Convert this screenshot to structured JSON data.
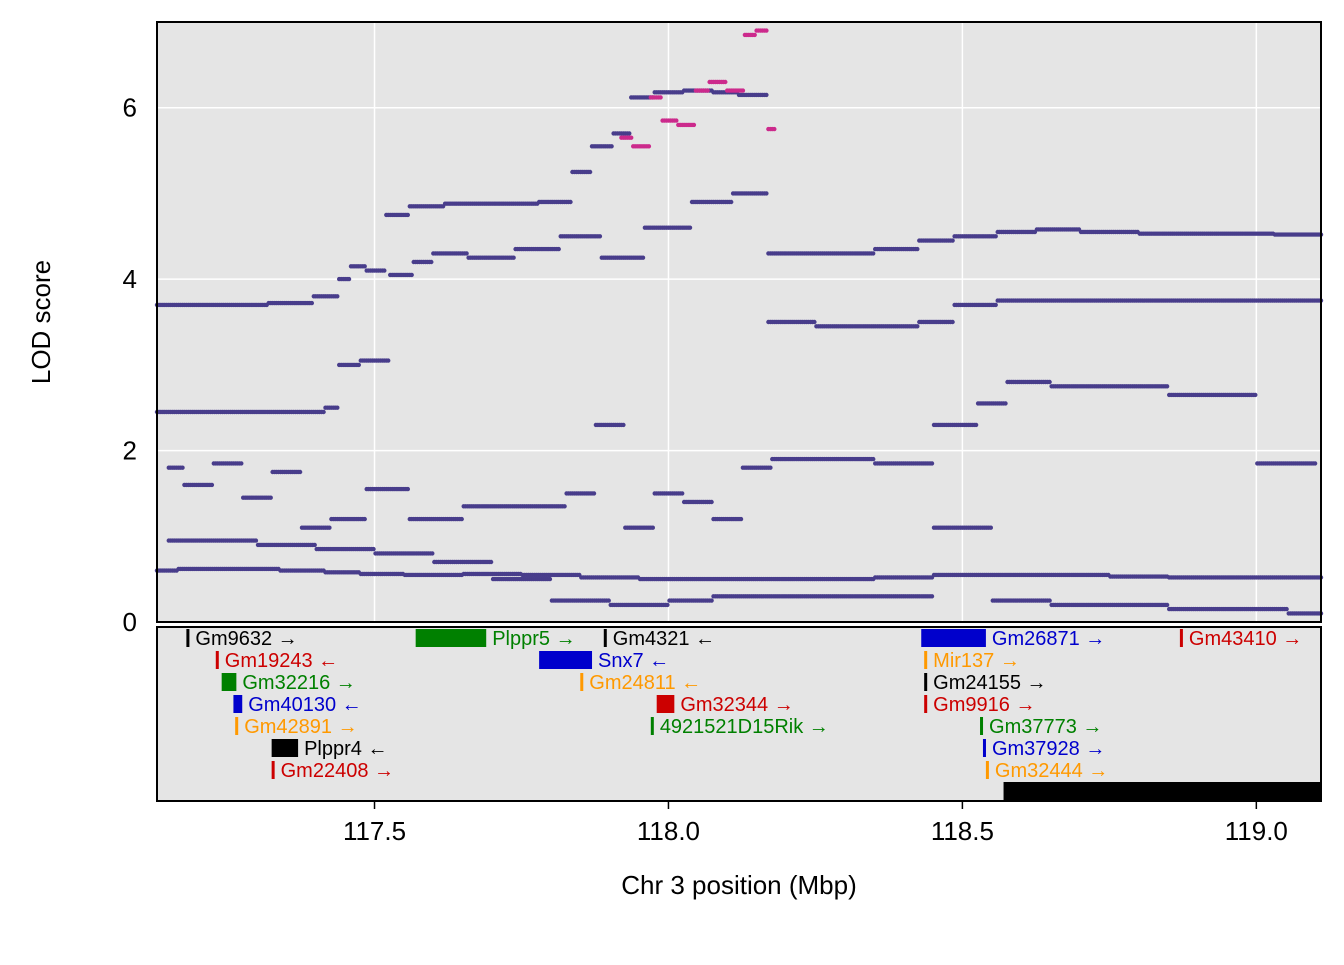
{
  "chart_data": {
    "type": "scatter",
    "title": "",
    "xlabel": "Chr 3 position (Mbp)",
    "ylabel": "LOD score",
    "xlim": [
      117.13,
      119.11
    ],
    "ylim": [
      0,
      7.0
    ],
    "x_ticks": [
      {
        "value": 117.5,
        "label": "117.5"
      },
      {
        "value": 118.0,
        "label": "118.0"
      },
      {
        "value": 118.5,
        "label": "118.5"
      },
      {
        "value": 119.0,
        "label": "119.0"
      }
    ],
    "y_ticks": [
      {
        "value": 0,
        "label": "0"
      },
      {
        "value": 2,
        "label": "2"
      },
      {
        "value": 4,
        "label": "4"
      },
      {
        "value": 6,
        "label": "6"
      }
    ],
    "grid": true,
    "colors": {
      "panel_background": "#e5e5e5",
      "gridline": "#ffffff",
      "points": "#483d8b",
      "highlight_points": "#cc2a8c",
      "gene_colors": [
        "#000000",
        "#cc0000",
        "#008000",
        "#0000cc",
        "#ff9900"
      ]
    },
    "highlight_threshold": 5.5,
    "series": [
      {
        "points": [
          [
            117.13,
            3.7
          ],
          [
            117.2,
            3.7
          ],
          [
            117.28,
            3.7
          ],
          [
            117.36,
            3.72
          ],
          [
            117.43,
            3.8
          ],
          [
            117.45,
            4.0
          ],
          [
            117.47,
            4.15
          ],
          [
            117.5,
            4.1
          ],
          [
            117.54,
            4.75
          ],
          [
            117.58,
            4.85
          ],
          [
            117.66,
            4.88
          ],
          [
            117.74,
            4.88
          ],
          [
            117.82,
            4.9
          ],
          [
            117.85,
            5.25
          ],
          [
            117.89,
            5.55
          ],
          [
            117.92,
            5.7
          ],
          [
            117.95,
            6.12
          ],
          [
            118.0,
            6.18
          ],
          [
            118.05,
            6.2
          ],
          [
            118.1,
            6.18
          ],
          [
            118.14,
            6.15
          ],
          [
            118.2,
            4.3
          ],
          [
            118.3,
            4.3
          ],
          [
            118.4,
            4.35
          ],
          [
            118.45,
            4.45
          ],
          [
            118.52,
            4.5
          ],
          [
            118.6,
            4.55
          ],
          [
            118.65,
            4.58
          ],
          [
            118.75,
            4.55
          ],
          [
            118.85,
            4.53
          ],
          [
            118.95,
            4.53
          ],
          [
            119.11,
            4.52
          ]
        ]
      },
      {
        "points": [
          [
            117.13,
            2.45
          ],
          [
            117.2,
            2.45
          ],
          [
            117.3,
            2.45
          ],
          [
            117.4,
            2.45
          ],
          [
            117.43,
            2.5
          ],
          [
            117.45,
            3.0
          ],
          [
            117.5,
            3.05
          ],
          [
            117.55,
            4.05
          ],
          [
            117.58,
            4.2
          ],
          [
            117.62,
            4.3
          ],
          [
            117.7,
            4.25
          ],
          [
            117.78,
            4.35
          ],
          [
            117.85,
            4.5
          ],
          [
            117.92,
            4.25
          ],
          [
            118.0,
            4.6
          ],
          [
            118.08,
            4.9
          ],
          [
            118.14,
            5.0
          ],
          [
            118.2,
            3.5
          ],
          [
            118.3,
            3.45
          ],
          [
            118.4,
            3.45
          ],
          [
            118.45,
            3.5
          ],
          [
            118.52,
            3.7
          ],
          [
            118.6,
            3.75
          ],
          [
            118.7,
            3.75
          ],
          [
            118.8,
            3.75
          ],
          [
            118.9,
            3.75
          ],
          [
            119.0,
            3.75
          ],
          [
            119.11,
            3.75
          ]
        ]
      },
      {
        "points": [
          [
            117.13,
            0.6
          ],
          [
            117.2,
            0.62
          ],
          [
            117.3,
            0.62
          ],
          [
            117.38,
            0.6
          ],
          [
            117.45,
            0.58
          ],
          [
            117.5,
            0.56
          ],
          [
            117.6,
            0.55
          ],
          [
            117.7,
            0.56
          ],
          [
            117.8,
            0.55
          ],
          [
            117.9,
            0.52
          ],
          [
            118.0,
            0.5
          ],
          [
            118.1,
            0.5
          ],
          [
            118.2,
            0.5
          ],
          [
            118.3,
            0.5
          ],
          [
            118.4,
            0.52
          ],
          [
            118.5,
            0.55
          ],
          [
            118.6,
            0.55
          ],
          [
            118.7,
            0.55
          ],
          [
            118.8,
            0.53
          ],
          [
            118.9,
            0.52
          ],
          [
            119.0,
            0.52
          ],
          [
            119.11,
            0.52
          ]
        ]
      },
      {
        "points": [
          [
            117.15,
            1.8
          ],
          [
            117.2,
            1.6
          ],
          [
            117.25,
            1.85
          ],
          [
            117.3,
            1.45
          ],
          [
            117.35,
            1.75
          ],
          [
            117.4,
            1.1
          ],
          [
            117.45,
            1.2
          ],
          [
            117.52,
            1.55
          ],
          [
            117.6,
            1.2
          ],
          [
            117.7,
            1.35
          ],
          [
            117.8,
            1.35
          ],
          [
            117.85,
            1.5
          ],
          [
            117.9,
            2.3
          ],
          [
            117.95,
            1.1
          ],
          [
            118.0,
            1.5
          ],
          [
            118.05,
            1.4
          ],
          [
            118.1,
            1.2
          ],
          [
            118.15,
            1.8
          ],
          [
            118.2,
            1.9
          ],
          [
            118.3,
            1.9
          ],
          [
            118.4,
            1.85
          ],
          [
            118.5,
            2.3
          ],
          [
            118.55,
            2.55
          ],
          [
            118.6,
            2.8
          ],
          [
            118.7,
            2.75
          ],
          [
            118.8,
            2.75
          ],
          [
            118.9,
            2.65
          ],
          [
            119.1,
            1.85
          ]
        ]
      },
      {
        "points": [
          [
            117.15,
            0.95
          ],
          [
            117.25,
            0.95
          ],
          [
            117.35,
            0.9
          ],
          [
            117.45,
            0.85
          ],
          [
            117.55,
            0.8
          ],
          [
            117.65,
            0.7
          ],
          [
            117.75,
            0.5
          ],
          [
            117.85,
            0.25
          ],
          [
            117.95,
            0.2
          ],
          [
            118.05,
            0.25
          ],
          [
            118.1,
            0.3
          ],
          [
            118.2,
            0.3
          ],
          [
            118.3,
            0.3
          ],
          [
            118.4,
            0.3
          ],
          [
            118.5,
            1.1
          ],
          [
            118.6,
            0.25
          ],
          [
            118.7,
            0.2
          ],
          [
            118.8,
            0.2
          ],
          [
            118.9,
            0.15
          ],
          [
            119.0,
            0.15
          ],
          [
            119.11,
            0.1
          ]
        ]
      }
    ],
    "highlight_series": [
      {
        "points": [
          [
            117.92,
            5.65
          ],
          [
            117.96,
            5.55
          ],
          [
            117.98,
            6.12
          ],
          [
            118.0,
            5.85
          ],
          [
            118.03,
            5.8
          ],
          [
            118.06,
            6.2
          ],
          [
            118.08,
            6.3
          ],
          [
            118.12,
            6.2
          ],
          [
            118.14,
            6.85
          ],
          [
            118.16,
            6.9
          ],
          [
            118.18,
            5.75
          ]
        ]
      }
    ],
    "genes": [
      {
        "name": "Gm9632",
        "strand": "→",
        "start": 117.18,
        "end": 117.183,
        "row": 0,
        "color": "#000000"
      },
      {
        "name": "Gm19243",
        "strand": "←",
        "start": 117.23,
        "end": 117.233,
        "row": 1,
        "color": "#cc0000"
      },
      {
        "name": "Gm32216",
        "strand": "→",
        "start": 117.24,
        "end": 117.265,
        "row": 2,
        "color": "#008000"
      },
      {
        "name": "Gm40130",
        "strand": "←",
        "start": 117.26,
        "end": 117.275,
        "row": 3,
        "color": "#0000cc"
      },
      {
        "name": "Gm42891",
        "strand": "→",
        "start": 117.263,
        "end": 117.266,
        "row": 4,
        "color": "#ff9900"
      },
      {
        "name": "Plppr4",
        "strand": "←",
        "start": 117.325,
        "end": 117.37,
        "row": 5,
        "color": "#000000"
      },
      {
        "name": "Gm22408",
        "strand": "→",
        "start": 117.325,
        "end": 117.328,
        "row": 6,
        "color": "#cc0000"
      },
      {
        "name": "Plppr5",
        "strand": "→",
        "start": 117.57,
        "end": 117.69,
        "row": 0,
        "color": "#008000"
      },
      {
        "name": "Snx7",
        "strand": "←",
        "start": 117.78,
        "end": 117.87,
        "row": 1,
        "color": "#0000cc"
      },
      {
        "name": "Gm4321",
        "strand": "←",
        "start": 117.89,
        "end": 117.893,
        "row": 0,
        "color": "#000000"
      },
      {
        "name": "Gm24811",
        "strand": "←",
        "start": 117.85,
        "end": 117.853,
        "row": 2,
        "color": "#ff9900"
      },
      {
        "name": "Gm32344",
        "strand": "→",
        "start": 117.98,
        "end": 118.01,
        "row": 3,
        "color": "#cc0000"
      },
      {
        "name": "4921521D15Rik",
        "strand": "→",
        "start": 117.97,
        "end": 117.975,
        "row": 4,
        "color": "#008000"
      },
      {
        "name": "Gm26871",
        "strand": "→",
        "start": 118.43,
        "end": 118.54,
        "row": 0,
        "color": "#0000cc"
      },
      {
        "name": "Mir137",
        "strand": "→",
        "start": 118.435,
        "end": 118.438,
        "row": 1,
        "color": "#ff9900"
      },
      {
        "name": "Gm24155",
        "strand": "→",
        "start": 118.435,
        "end": 118.438,
        "row": 2,
        "color": "#000000"
      },
      {
        "name": "Gm9916",
        "strand": "→",
        "start": 118.435,
        "end": 118.438,
        "row": 3,
        "color": "#cc0000"
      },
      {
        "name": "Gm37773",
        "strand": "→",
        "start": 118.53,
        "end": 118.533,
        "row": 4,
        "color": "#008000"
      },
      {
        "name": "Gm37928",
        "strand": "→",
        "start": 118.535,
        "end": 118.54,
        "row": 5,
        "color": "#0000cc"
      },
      {
        "name": "Gm32444",
        "strand": "→",
        "start": 118.54,
        "end": 118.543,
        "row": 6,
        "color": "#ff9900"
      },
      {
        "name": "Gm43410",
        "strand": "→",
        "start": 118.87,
        "end": 118.873,
        "row": 0,
        "color": "#cc0000"
      },
      {
        "name": "",
        "strand": "",
        "start": 118.57,
        "end": 119.11,
        "row": 7,
        "color": "#000000"
      }
    ]
  }
}
